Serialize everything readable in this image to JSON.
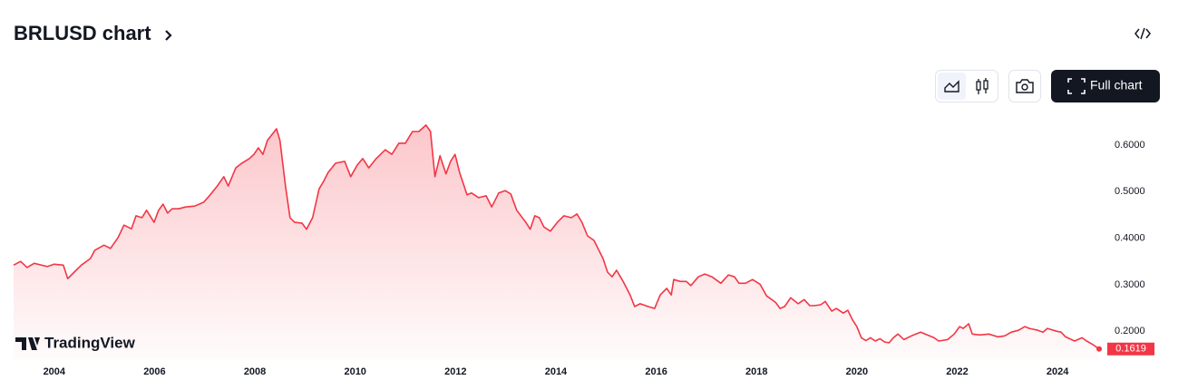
{
  "ui": {
    "title": "BRLUSD chart",
    "full_chart": "Full chart",
    "brand": "TradingView"
  },
  "chart_data": {
    "type": "area",
    "x": [
      2003.19,
      2003.33,
      2003.46,
      2003.6,
      2003.86,
      2004.0,
      2004.18,
      2004.27,
      2004.4,
      2004.54,
      2004.72,
      2004.81,
      2004.99,
      2005.12,
      2005.27,
      2005.39,
      2005.54,
      2005.63,
      2005.75,
      2005.84,
      2005.99,
      2006.08,
      2006.17,
      2006.26,
      2006.35,
      2006.48,
      2006.62,
      2006.8,
      2006.98,
      2007.11,
      2007.25,
      2007.38,
      2007.47,
      2007.62,
      2007.74,
      2007.89,
      2007.98,
      2008.07,
      2008.16,
      2008.25,
      2008.43,
      2008.5,
      2008.61,
      2008.7,
      2008.79,
      2008.94,
      2009.03,
      2009.15,
      2009.28,
      2009.37,
      2009.46,
      2009.61,
      2009.79,
      2009.91,
      2010.04,
      2010.15,
      2010.27,
      2010.42,
      2010.6,
      2010.73,
      2010.87,
      2011.0,
      2011.14,
      2011.27,
      2011.41,
      2011.5,
      2011.59,
      2011.69,
      2011.81,
      2011.9,
      2011.99,
      2012.08,
      2012.23,
      2012.32,
      2012.46,
      2012.61,
      2012.72,
      2012.86,
      2012.99,
      2013.1,
      2013.22,
      2013.4,
      2013.49,
      2013.58,
      2013.67,
      2013.76,
      2013.89,
      2014.03,
      2014.16,
      2014.31,
      2014.42,
      2014.52,
      2014.63,
      2014.76,
      2014.94,
      2015.03,
      2015.12,
      2015.21,
      2015.34,
      2015.48,
      2015.57,
      2015.68,
      2015.84,
      2015.97,
      2016.08,
      2016.21,
      2016.3,
      2016.35,
      2016.48,
      2016.6,
      2016.69,
      2016.84,
      2016.97,
      2017.11,
      2017.29,
      2017.44,
      2017.56,
      2017.65,
      2017.78,
      2017.92,
      2018.07,
      2018.2,
      2018.38,
      2018.47,
      2018.56,
      2018.68,
      2018.83,
      2018.95,
      2019.06,
      2019.15,
      2019.28,
      2019.37,
      2019.5,
      2019.59,
      2019.73,
      2019.82,
      2019.91,
      2020.0,
      2020.09,
      2020.18,
      2020.27,
      2020.37,
      2020.46,
      2020.55,
      2020.64,
      2020.73,
      2020.82,
      2020.94,
      2021.09,
      2021.27,
      2021.36,
      2021.54,
      2021.63,
      2021.81,
      2021.94,
      2022.05,
      2022.12,
      2022.23,
      2022.3,
      2022.45,
      2022.63,
      2022.81,
      2022.95,
      2023.08,
      2023.22,
      2023.35,
      2023.44,
      2023.61,
      2023.71,
      2023.8,
      2023.98,
      2024.07,
      2024.16,
      2024.34,
      2024.49,
      2024.58,
      2024.71,
      2024.83
    ],
    "values": [
      0.342,
      0.35,
      0.337,
      0.346,
      0.339,
      0.344,
      0.342,
      0.313,
      0.327,
      0.342,
      0.356,
      0.374,
      0.385,
      0.378,
      0.401,
      0.428,
      0.42,
      0.448,
      0.444,
      0.46,
      0.434,
      0.46,
      0.473,
      0.454,
      0.463,
      0.463,
      0.467,
      0.469,
      0.477,
      0.493,
      0.512,
      0.532,
      0.512,
      0.551,
      0.561,
      0.571,
      0.58,
      0.594,
      0.58,
      0.61,
      0.635,
      0.61,
      0.512,
      0.444,
      0.434,
      0.432,
      0.419,
      0.444,
      0.506,
      0.522,
      0.541,
      0.561,
      0.565,
      0.532,
      0.557,
      0.571,
      0.551,
      0.571,
      0.59,
      0.58,
      0.604,
      0.604,
      0.629,
      0.629,
      0.643,
      0.629,
      0.532,
      0.577,
      0.538,
      0.565,
      0.58,
      0.541,
      0.493,
      0.497,
      0.487,
      0.491,
      0.467,
      0.497,
      0.502,
      0.495,
      0.46,
      0.434,
      0.419,
      0.448,
      0.444,
      0.424,
      0.415,
      0.434,
      0.448,
      0.444,
      0.452,
      0.434,
      0.405,
      0.395,
      0.356,
      0.327,
      0.317,
      0.331,
      0.307,
      0.278,
      0.253,
      0.259,
      0.253,
      0.249,
      0.278,
      0.292,
      0.278,
      0.311,
      0.307,
      0.307,
      0.298,
      0.317,
      0.323,
      0.317,
      0.303,
      0.321,
      0.317,
      0.303,
      0.303,
      0.311,
      0.301,
      0.276,
      0.262,
      0.249,
      0.253,
      0.272,
      0.259,
      0.268,
      0.255,
      0.255,
      0.257,
      0.264,
      0.243,
      0.249,
      0.239,
      0.245,
      0.225,
      0.21,
      0.186,
      0.18,
      0.186,
      0.179,
      0.184,
      0.177,
      0.175,
      0.186,
      0.194,
      0.182,
      0.19,
      0.198,
      0.194,
      0.186,
      0.179,
      0.182,
      0.194,
      0.21,
      0.206,
      0.216,
      0.194,
      0.192,
      0.194,
      0.188,
      0.19,
      0.198,
      0.202,
      0.21,
      0.206,
      0.202,
      0.198,
      0.206,
      0.2,
      0.198,
      0.188,
      0.179,
      0.186,
      0.179,
      0.171,
      0.1619
    ],
    "last_value_label": "0.1619",
    "color": "#f23645",
    "xlim": [
      2003.19,
      2024.92
    ],
    "xticks": [
      2004,
      2006,
      2008,
      2010,
      2012,
      2014,
      2016,
      2018,
      2020,
      2022,
      2024
    ],
    "ylim": [
      0.14,
      0.67
    ],
    "yticks": [
      {
        "value": 0.2,
        "label": "0.2000"
      },
      {
        "value": 0.3,
        "label": "0.3000"
      },
      {
        "value": 0.4,
        "label": "0.4000"
      },
      {
        "value": 0.5,
        "label": "0.5000"
      },
      {
        "value": 0.6,
        "label": "0.6000"
      }
    ],
    "grid": false
  }
}
